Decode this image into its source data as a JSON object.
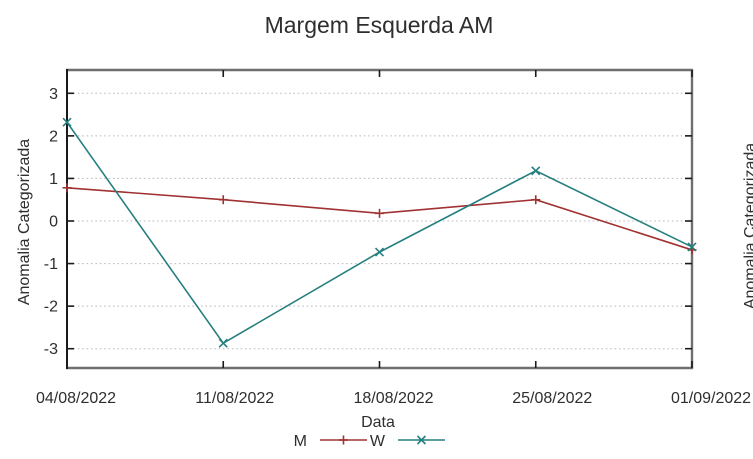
{
  "chart_data": {
    "type": "line",
    "title": "Margem Esquerda AM",
    "xlabel": "Data",
    "ylabel": "Anomalia Categorizada",
    "x_tick_labels": [
      "04/08/2022",
      "11/08/2022",
      "18/08/2022",
      "25/08/2022",
      "01/09/2022"
    ],
    "y_ticks": [
      3,
      2,
      1,
      0,
      -1,
      -2,
      -3
    ],
    "ylim": [
      -3.5,
      3.55
    ],
    "grid": "horizontal dotted gridlines at integer y values",
    "legend_position": "bottom-center below x-axis label",
    "series": [
      {
        "name": "M",
        "marker": "plus",
        "color": "#a03232",
        "values": [
          0.78,
          0.5,
          0.18,
          0.5,
          -0.68
        ]
      },
      {
        "name": "W",
        "marker": "cross",
        "color": "#267f7f",
        "values": [
          2.32,
          -2.87,
          -0.73,
          1.18,
          -0.61
        ]
      }
    ]
  },
  "adjacent_chart": {
    "partial_ylabel": "Anomalia Categorizada"
  },
  "colors": {
    "grid": "#b9b9b9",
    "border_gray": "#6f6f6f",
    "border_dark": "#1a1a1a",
    "text": "#2e2e2e",
    "background": "#ffffff"
  }
}
